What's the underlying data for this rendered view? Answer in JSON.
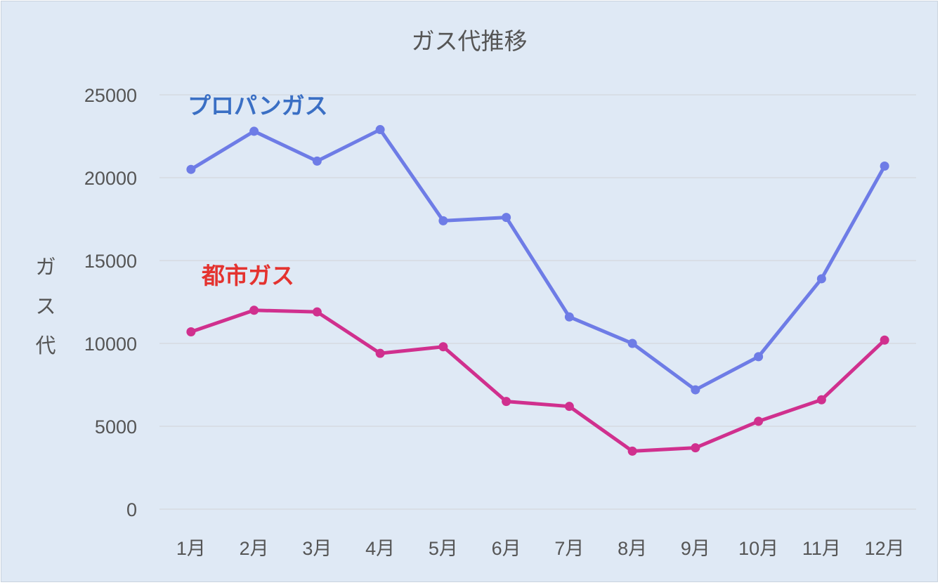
{
  "chart_data": {
    "type": "line",
    "title": "ガス代推移",
    "ylabel": "ガス代",
    "xlabel": "",
    "categories": [
      "1月",
      "2月",
      "3月",
      "4月",
      "5月",
      "6月",
      "7月",
      "8月",
      "9月",
      "10月",
      "11月",
      "12月"
    ],
    "ylim": [
      0,
      25000
    ],
    "yticks": [
      "0",
      "5000",
      "10000",
      "15000",
      "20000",
      "25000"
    ],
    "grid": true,
    "legend": "none",
    "series": [
      {
        "name": "プロパンガス",
        "color": "#6e7ce6",
        "label_color": "#3a6fc4",
        "values": [
          20500,
          22800,
          21000,
          22900,
          17400,
          17600,
          11600,
          10000,
          7200,
          9200,
          13900,
          20700
        ]
      },
      {
        "name": "都市ガス",
        "color": "#d0308e",
        "label_color": "#e4332f",
        "values": [
          10700,
          12000,
          11900,
          9400,
          9800,
          6500,
          6200,
          3500,
          3700,
          5300,
          6600,
          10200
        ]
      }
    ]
  }
}
